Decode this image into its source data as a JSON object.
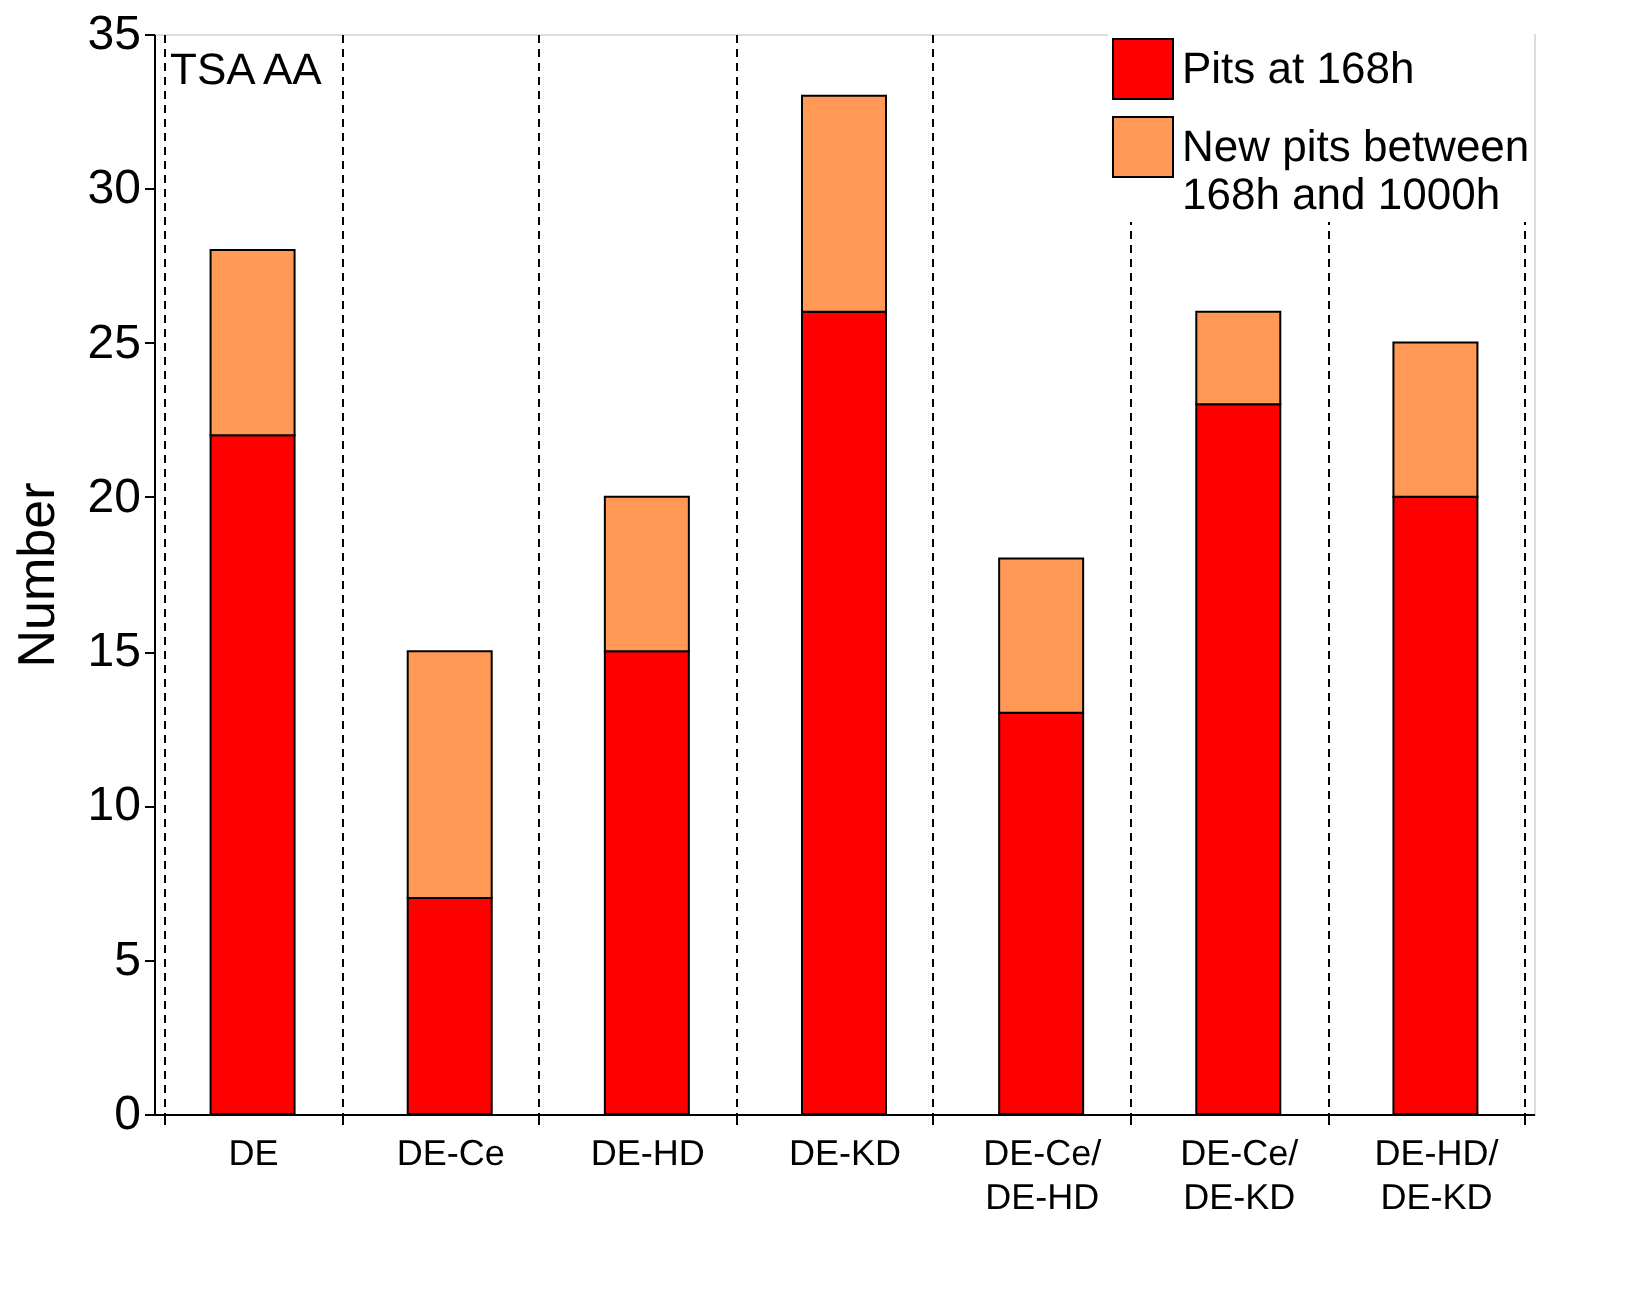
{
  "chart_data": {
    "type": "bar",
    "stacked": true,
    "ylabel": "Number",
    "categories": [
      "DE",
      "DE-Ce",
      "DE-HD",
      "DE-KD",
      "DE-Ce/DE-HD",
      "DE-Ce/DE-KD",
      "DE-HD/DE-KD"
    ],
    "series": [
      {
        "name": "Pits at 168h",
        "color": "#ff0000",
        "values": [
          22,
          7,
          15,
          26,
          13,
          23,
          20
        ]
      },
      {
        "name": "New pits between 168h and 1000h",
        "color": "#ff9955",
        "values": [
          6,
          8,
          5,
          7,
          5,
          3,
          5
        ]
      }
    ],
    "ylim": [
      0,
      35
    ],
    "yticks": [
      0,
      5,
      10,
      15,
      20,
      25,
      30,
      35
    ],
    "grid": "x",
    "legend": "top right",
    "annotations": [
      "TSA AA"
    ]
  }
}
